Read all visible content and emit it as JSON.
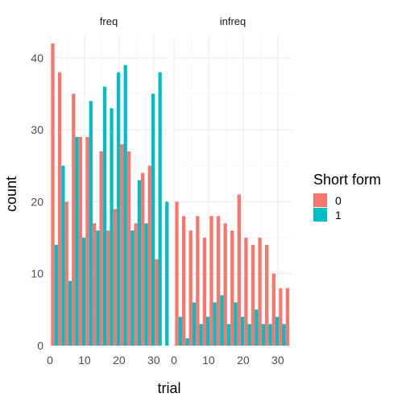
{
  "chart_data": {
    "type": "bar",
    "subtype": "dodged-histogram-faceted",
    "xlabel": "trial",
    "ylabel": "count",
    "xlim": [
      0,
      34
    ],
    "ylim": [
      0,
      43
    ],
    "xticks": [
      0,
      10,
      20,
      30
    ],
    "yticks": [
      0,
      10,
      20,
      30,
      40
    ],
    "grid": true,
    "legend": {
      "title": "Short form",
      "placement": "right",
      "entries": [
        {
          "label": "0",
          "color": "#F8766D"
        },
        {
          "label": "1",
          "color": "#00BFC4"
        }
      ]
    },
    "bin_centers": [
      1.32,
      3.32,
      5.32,
      7.32,
      9.32,
      11.32,
      13.32,
      15.32,
      17.32,
      19.32,
      21.32,
      23.32,
      25.32,
      27.32,
      29.32,
      31.32,
      33.32
    ],
    "bin_width": 2,
    "facets": [
      {
        "label": "freq",
        "series": [
          {
            "name": "0",
            "color": "#F8766D",
            "values": [
              42,
              38,
              20,
              35,
              29,
              29,
              17,
              27,
              16,
              19,
              28,
              27,
              17,
              24,
              25,
              12,
              0
            ]
          },
          {
            "name": "1",
            "color": "#00BFC4",
            "values": [
              14,
              25,
              9,
              29,
              15,
              34,
              16,
              36,
              33,
              38,
              39,
              16,
              23,
              17,
              35,
              38,
              20
            ]
          }
        ]
      },
      {
        "label": "infreq",
        "series": [
          {
            "name": "0",
            "color": "#F8766D",
            "values": [
              20,
              18,
              16,
              18,
              15,
              18,
              18,
              17,
              16,
              21,
              15,
              14,
              15,
              14,
              10,
              8,
              8
            ]
          },
          {
            "name": "1",
            "color": "#00BFC4",
            "values": [
              4,
              1,
              6,
              3,
              4,
              6,
              7,
              3,
              6,
              4,
              3,
              5,
              3,
              3,
              4,
              3,
              0
            ]
          }
        ]
      }
    ]
  }
}
